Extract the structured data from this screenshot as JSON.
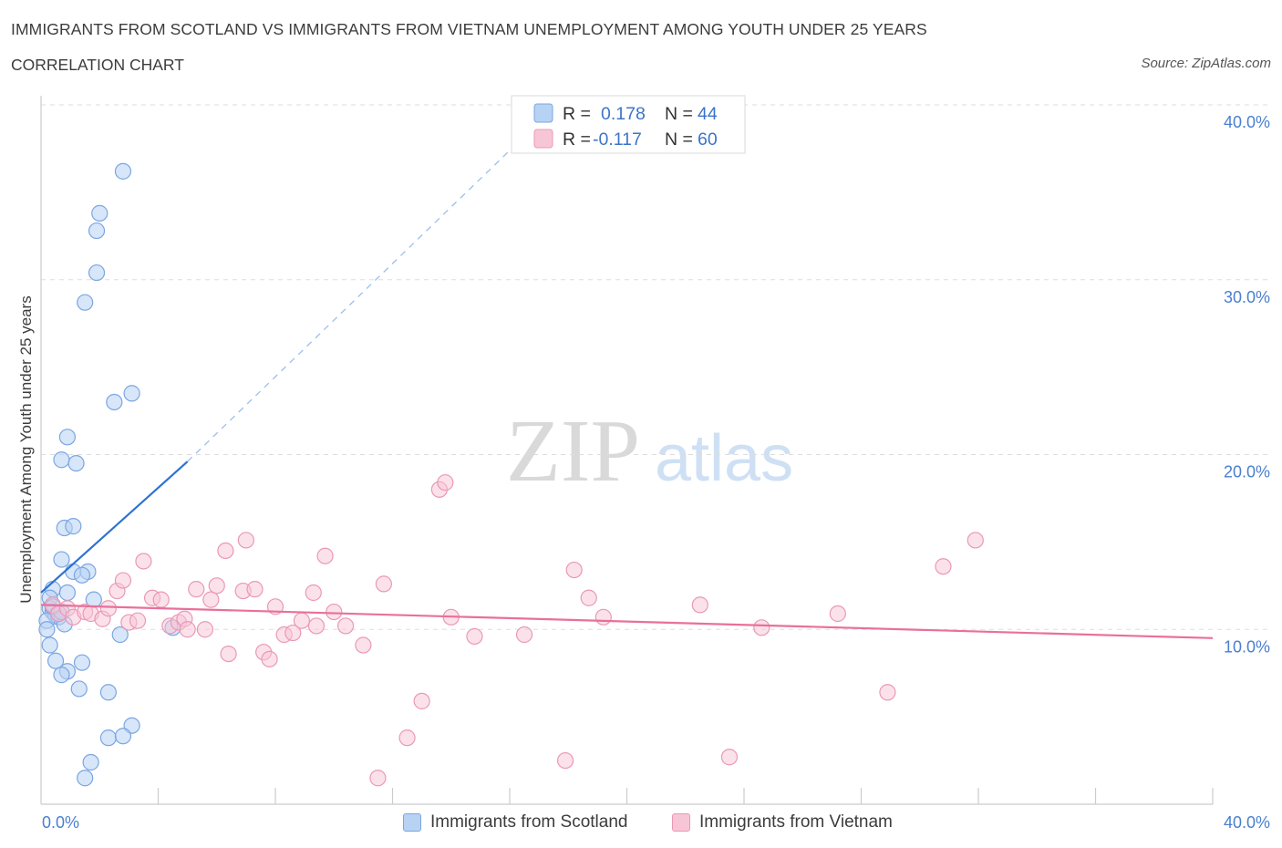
{
  "title": "IMMIGRANTS FROM SCOTLAND VS IMMIGRANTS FROM VIETNAM UNEMPLOYMENT AMONG YOUTH UNDER 25 YEARS",
  "subtitle": "CORRELATION CHART",
  "source": "Source: ZipAtlas.com",
  "watermark": {
    "zip": "ZIP",
    "atlas": "atlas"
  },
  "legend": {
    "r_label": "R =",
    "n_label": "N =",
    "scotland": {
      "r": "0.178",
      "n": "44"
    },
    "vietnam": {
      "r": "-0.117",
      "n": "60"
    }
  },
  "bottom_legend": {
    "scotland": "Immigrants from Scotland",
    "vietnam": "Immigrants from Vietnam"
  },
  "colors": {
    "scotland_fill": "#b8d2f4",
    "scotland_stroke": "#7aa6e3",
    "scotland_line": "#2d72d2",
    "vietnam_fill": "#f7c6d6",
    "vietnam_stroke": "#eb98b5",
    "vietnam_line": "#e8709a",
    "tick": "#4a7fd0",
    "grid": "#dddddd"
  },
  "chart_data": {
    "type": "scatter",
    "title": "IMMIGRANTS FROM SCOTLAND VS IMMIGRANTS FROM VIETNAM UNEMPLOYMENT AMONG YOUTH UNDER 25 YEARS",
    "xlabel": "",
    "ylabel": "Unemployment Among Youth under 25 years",
    "xlim": [
      0,
      40
    ],
    "ylim": [
      0,
      40
    ],
    "x_tick_labels": [
      "0.0%",
      "40.0%"
    ],
    "y_tick_labels": [
      "10.0%",
      "20.0%",
      "30.0%",
      "40.0%"
    ],
    "y_ticks": [
      10,
      20,
      30,
      40
    ],
    "grid": true,
    "series": [
      {
        "name": "Immigrants from Scotland",
        "points": [
          [
            2.8,
            36.2
          ],
          [
            2.0,
            33.8
          ],
          [
            1.9,
            32.8
          ],
          [
            1.9,
            30.4
          ],
          [
            1.5,
            28.7
          ],
          [
            3.1,
            23.5
          ],
          [
            2.5,
            23.0
          ],
          [
            0.9,
            21.0
          ],
          [
            0.7,
            19.7
          ],
          [
            1.2,
            19.5
          ],
          [
            0.8,
            15.8
          ],
          [
            1.1,
            15.9
          ],
          [
            0.7,
            14.0
          ],
          [
            1.1,
            13.3
          ],
          [
            1.6,
            13.3
          ],
          [
            1.4,
            13.1
          ],
          [
            0.4,
            12.3
          ],
          [
            0.9,
            12.1
          ],
          [
            0.3,
            11.8
          ],
          [
            1.8,
            11.7
          ],
          [
            0.3,
            11.2
          ],
          [
            0.4,
            11.0
          ],
          [
            0.5,
            10.8
          ],
          [
            0.6,
            10.7
          ],
          [
            0.2,
            10.5
          ],
          [
            0.8,
            10.3
          ],
          [
            0.2,
            10.0
          ],
          [
            4.5,
            10.1
          ],
          [
            2.7,
            9.7
          ],
          [
            0.3,
            9.1
          ],
          [
            0.5,
            8.2
          ],
          [
            1.4,
            8.1
          ],
          [
            0.9,
            7.6
          ],
          [
            0.7,
            7.4
          ],
          [
            1.3,
            6.6
          ],
          [
            2.3,
            6.4
          ],
          [
            3.1,
            4.5
          ],
          [
            2.3,
            3.8
          ],
          [
            2.8,
            3.9
          ],
          [
            1.7,
            2.4
          ],
          [
            1.5,
            1.5
          ],
          [
            0.6,
            10.9
          ],
          [
            0.4,
            11.3
          ],
          [
            0.7,
            11.0
          ]
        ],
        "trend": {
          "x": [
            0.0,
            5.0
          ],
          "y": [
            12.1,
            19.6
          ],
          "dashed_extension_to": [
            16.5,
            38.2
          ]
        }
      },
      {
        "name": "Immigrants from Vietnam",
        "points": [
          [
            0.4,
            11.4
          ],
          [
            0.6,
            10.9
          ],
          [
            0.9,
            11.2
          ],
          [
            1.1,
            10.7
          ],
          [
            1.5,
            11.0
          ],
          [
            1.7,
            10.9
          ],
          [
            2.1,
            10.6
          ],
          [
            2.3,
            11.2
          ],
          [
            2.6,
            12.2
          ],
          [
            2.8,
            12.8
          ],
          [
            3.0,
            10.4
          ],
          [
            3.3,
            10.5
          ],
          [
            3.5,
            13.9
          ],
          [
            3.8,
            11.8
          ],
          [
            4.1,
            11.7
          ],
          [
            4.4,
            10.2
          ],
          [
            4.7,
            10.4
          ],
          [
            4.9,
            10.6
          ],
          [
            5.0,
            10.0
          ],
          [
            5.3,
            12.3
          ],
          [
            5.6,
            10.0
          ],
          [
            5.8,
            11.7
          ],
          [
            6.0,
            12.5
          ],
          [
            6.3,
            14.5
          ],
          [
            6.4,
            8.6
          ],
          [
            6.9,
            12.2
          ],
          [
            7.0,
            15.1
          ],
          [
            7.3,
            12.3
          ],
          [
            7.6,
            8.7
          ],
          [
            7.8,
            8.3
          ],
          [
            8.0,
            11.3
          ],
          [
            8.3,
            9.7
          ],
          [
            8.6,
            9.8
          ],
          [
            8.9,
            10.5
          ],
          [
            9.3,
            12.1
          ],
          [
            9.4,
            10.2
          ],
          [
            9.7,
            14.2
          ],
          [
            10.0,
            11.0
          ],
          [
            10.4,
            10.2
          ],
          [
            11.0,
            9.1
          ],
          [
            11.7,
            12.6
          ],
          [
            12.5,
            3.8
          ],
          [
            13.0,
            5.9
          ],
          [
            13.6,
            18.0
          ],
          [
            13.8,
            18.4
          ],
          [
            14.0,
            10.7
          ],
          [
            14.8,
            9.6
          ],
          [
            16.5,
            9.7
          ],
          [
            17.9,
            2.5
          ],
          [
            18.2,
            13.4
          ],
          [
            18.7,
            11.8
          ],
          [
            19.2,
            10.7
          ],
          [
            22.5,
            11.4
          ],
          [
            23.5,
            2.7
          ],
          [
            24.6,
            10.1
          ],
          [
            27.2,
            10.9
          ],
          [
            28.9,
            6.4
          ],
          [
            30.8,
            13.6
          ],
          [
            31.9,
            15.1
          ],
          [
            11.5,
            1.5
          ]
        ],
        "trend": {
          "x": [
            0.0,
            40.0
          ],
          "y": [
            11.4,
            9.5
          ]
        }
      }
    ]
  }
}
